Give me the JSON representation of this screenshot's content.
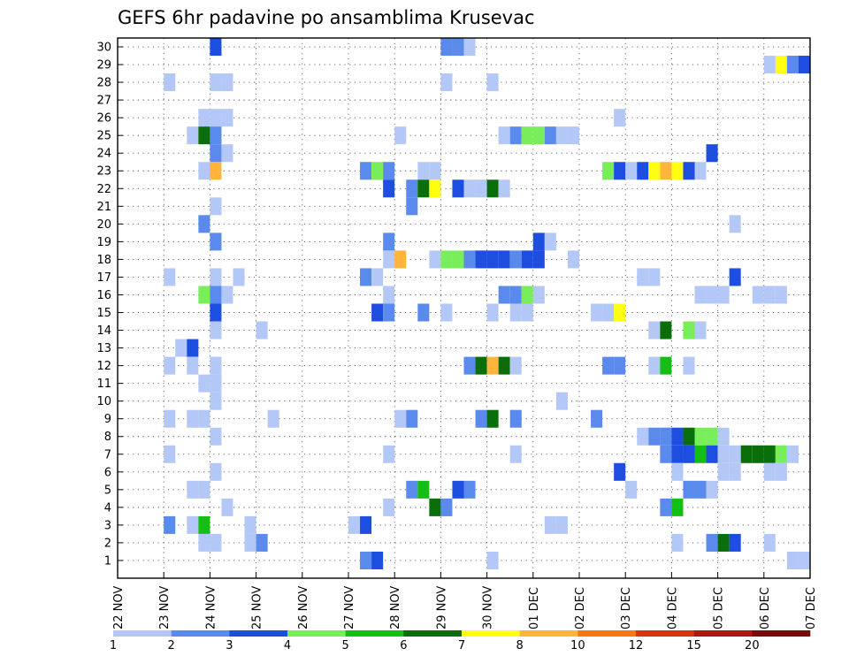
{
  "chart_data": {
    "type": "heatmap",
    "title": "GEFS 6hr padavine po ansamblima Krusevac",
    "y_members": [
      1,
      2,
      3,
      4,
      5,
      6,
      7,
      8,
      9,
      10,
      11,
      12,
      13,
      14,
      15,
      16,
      17,
      18,
      19,
      20,
      21,
      22,
      23,
      24,
      25,
      26,
      27,
      28,
      29,
      30
    ],
    "x_tick_labels": [
      "22 NOV",
      "23 NOV",
      "24 NOV",
      "25 NOV",
      "26 NOV",
      "27 NOV",
      "28 NOV",
      "29 NOV",
      "30 NOV",
      "01 DEC",
      "02 DEC",
      "03 DEC",
      "04 DEC",
      "05 DEC",
      "06 DEC",
      "07 DEC"
    ],
    "x_step_hours": 6,
    "color_thresholds": [
      1,
      2,
      3,
      4,
      5,
      6,
      7,
      8,
      10,
      12,
      15,
      20
    ],
    "colorbar_labels": [
      "1",
      "2",
      "3",
      "4",
      "5",
      "6",
      "7",
      "8",
      "10",
      "12",
      "15",
      "20"
    ],
    "colors": [
      "#b4c8f8",
      "#5a8aec",
      "#1e4ee0",
      "#78ee5a",
      "#14be14",
      "#0a6e0a",
      "#ffff14",
      "#ffb43c",
      "#f57814",
      "#dc3214",
      "#b41414",
      "#780a0a"
    ],
    "grid": true,
    "cells_note": "each cell: [member, step index from 22 NOV 00z, color class 1-12]",
    "cells": [
      [
        30,
        8,
        3
      ],
      [
        30,
        28,
        2
      ],
      [
        30,
        29,
        2
      ],
      [
        30,
        30,
        1
      ],
      [
        29,
        56,
        1
      ],
      [
        29,
        57,
        7
      ],
      [
        29,
        58,
        2
      ],
      [
        29,
        59,
        3
      ],
      [
        29,
        60,
        3
      ],
      [
        28,
        4,
        1
      ],
      [
        28,
        8,
        1
      ],
      [
        28,
        9,
        1
      ],
      [
        28,
        28,
        1
      ],
      [
        28,
        32,
        1
      ],
      [
        28,
        60,
        1
      ],
      [
        26,
        7,
        1
      ],
      [
        26,
        8,
        1
      ],
      [
        26,
        9,
        1
      ],
      [
        26,
        43,
        1
      ],
      [
        25,
        6,
        1
      ],
      [
        25,
        7,
        6
      ],
      [
        25,
        8,
        2
      ],
      [
        25,
        24,
        1
      ],
      [
        25,
        33,
        1
      ],
      [
        25,
        34,
        2
      ],
      [
        25,
        35,
        4
      ],
      [
        25,
        36,
        4
      ],
      [
        25,
        37,
        2
      ],
      [
        25,
        38,
        1
      ],
      [
        25,
        39,
        1
      ],
      [
        24,
        8,
        2
      ],
      [
        24,
        9,
        1
      ],
      [
        24,
        51,
        3
      ],
      [
        23,
        7,
        1
      ],
      [
        23,
        8,
        8
      ],
      [
        23,
        21,
        2
      ],
      [
        23,
        22,
        4
      ],
      [
        23,
        23,
        2
      ],
      [
        23,
        26,
        1
      ],
      [
        23,
        27,
        1
      ],
      [
        23,
        42,
        4
      ],
      [
        23,
        43,
        3
      ],
      [
        23,
        44,
        1
      ],
      [
        23,
        45,
        3
      ],
      [
        23,
        46,
        7
      ],
      [
        23,
        47,
        8
      ],
      [
        23,
        48,
        7
      ],
      [
        23,
        49,
        3
      ],
      [
        23,
        50,
        1
      ],
      [
        22,
        23,
        3
      ],
      [
        22,
        25,
        2
      ],
      [
        22,
        26,
        6
      ],
      [
        22,
        27,
        7
      ],
      [
        22,
        29,
        3
      ],
      [
        22,
        30,
        1
      ],
      [
        22,
        31,
        1
      ],
      [
        22,
        32,
        6
      ],
      [
        22,
        33,
        1
      ],
      [
        21,
        8,
        1
      ],
      [
        21,
        25,
        2
      ],
      [
        20,
        7,
        2
      ],
      [
        20,
        53,
        1
      ],
      [
        19,
        8,
        2
      ],
      [
        19,
        23,
        2
      ],
      [
        19,
        36,
        3
      ],
      [
        19,
        37,
        1
      ],
      [
        18,
        23,
        1
      ],
      [
        18,
        24,
        8
      ],
      [
        18,
        27,
        1
      ],
      [
        18,
        28,
        4
      ],
      [
        18,
        29,
        4
      ],
      [
        18,
        30,
        2
      ],
      [
        18,
        31,
        3
      ],
      [
        18,
        32,
        3
      ],
      [
        18,
        33,
        3
      ],
      [
        18,
        34,
        2
      ],
      [
        18,
        35,
        3
      ],
      [
        18,
        36,
        3
      ],
      [
        18,
        39,
        1
      ],
      [
        17,
        4,
        1
      ],
      [
        17,
        8,
        1
      ],
      [
        17,
        10,
        1
      ],
      [
        17,
        21,
        2
      ],
      [
        17,
        22,
        1
      ],
      [
        17,
        45,
        1
      ],
      [
        17,
        46,
        1
      ],
      [
        17,
        53,
        3
      ],
      [
        16,
        7,
        4
      ],
      [
        16,
        8,
        2
      ],
      [
        16,
        9,
        1
      ],
      [
        16,
        23,
        1
      ],
      [
        16,
        33,
        2
      ],
      [
        16,
        34,
        2
      ],
      [
        16,
        35,
        4
      ],
      [
        16,
        36,
        1
      ],
      [
        16,
        50,
        1
      ],
      [
        16,
        51,
        1
      ],
      [
        16,
        52,
        1
      ],
      [
        16,
        55,
        1
      ],
      [
        16,
        56,
        1
      ],
      [
        16,
        57,
        1
      ],
      [
        15,
        8,
        3
      ],
      [
        15,
        22,
        3
      ],
      [
        15,
        23,
        2
      ],
      [
        15,
        26,
        2
      ],
      [
        15,
        28,
        1
      ],
      [
        15,
        32,
        1
      ],
      [
        15,
        34,
        1
      ],
      [
        15,
        35,
        1
      ],
      [
        15,
        41,
        1
      ],
      [
        15,
        42,
        1
      ],
      [
        15,
        43,
        7
      ],
      [
        14,
        8,
        1
      ],
      [
        14,
        12,
        1
      ],
      [
        14,
        46,
        1
      ],
      [
        14,
        47,
        6
      ],
      [
        14,
        49,
        4
      ],
      [
        14,
        50,
        1
      ],
      [
        13,
        5,
        1
      ],
      [
        13,
        6,
        3
      ],
      [
        12,
        4,
        1
      ],
      [
        12,
        6,
        1
      ],
      [
        12,
        8,
        1
      ],
      [
        12,
        30,
        2
      ],
      [
        12,
        31,
        6
      ],
      [
        12,
        32,
        8
      ],
      [
        12,
        33,
        6
      ],
      [
        12,
        34,
        1
      ],
      [
        12,
        42,
        2
      ],
      [
        12,
        43,
        2
      ],
      [
        12,
        46,
        1
      ],
      [
        12,
        47,
        5
      ],
      [
        12,
        49,
        1
      ],
      [
        11,
        7,
        1
      ],
      [
        11,
        8,
        1
      ],
      [
        10,
        8,
        1
      ],
      [
        10,
        38,
        1
      ],
      [
        9,
        4,
        1
      ],
      [
        9,
        6,
        1
      ],
      [
        9,
        7,
        1
      ],
      [
        9,
        13,
        1
      ],
      [
        9,
        24,
        1
      ],
      [
        9,
        25,
        2
      ],
      [
        9,
        31,
        2
      ],
      [
        9,
        32,
        6
      ],
      [
        9,
        34,
        2
      ],
      [
        9,
        41,
        2
      ],
      [
        8,
        8,
        1
      ],
      [
        8,
        45,
        1
      ],
      [
        8,
        46,
        2
      ],
      [
        8,
        47,
        2
      ],
      [
        8,
        48,
        3
      ],
      [
        8,
        49,
        6
      ],
      [
        8,
        50,
        4
      ],
      [
        8,
        51,
        4
      ],
      [
        8,
        52,
        1
      ],
      [
        7,
        4,
        1
      ],
      [
        7,
        23,
        1
      ],
      [
        7,
        34,
        1
      ],
      [
        7,
        47,
        2
      ],
      [
        7,
        48,
        3
      ],
      [
        7,
        49,
        3
      ],
      [
        7,
        50,
        5
      ],
      [
        7,
        51,
        3
      ],
      [
        7,
        52,
        1
      ],
      [
        7,
        53,
        1
      ],
      [
        7,
        54,
        6
      ],
      [
        7,
        55,
        6
      ],
      [
        7,
        56,
        6
      ],
      [
        7,
        57,
        4
      ],
      [
        7,
        58,
        1
      ],
      [
        6,
        8,
        1
      ],
      [
        6,
        43,
        3
      ],
      [
        6,
        48,
        1
      ],
      [
        6,
        52,
        1
      ],
      [
        6,
        53,
        1
      ],
      [
        6,
        56,
        1
      ],
      [
        6,
        57,
        1
      ],
      [
        5,
        6,
        1
      ],
      [
        5,
        7,
        1
      ],
      [
        5,
        25,
        2
      ],
      [
        5,
        26,
        5
      ],
      [
        5,
        29,
        3
      ],
      [
        5,
        30,
        2
      ],
      [
        5,
        44,
        1
      ],
      [
        5,
        49,
        2
      ],
      [
        5,
        50,
        2
      ],
      [
        5,
        51,
        1
      ],
      [
        4,
        9,
        1
      ],
      [
        4,
        23,
        1
      ],
      [
        4,
        27,
        6
      ],
      [
        4,
        28,
        2
      ],
      [
        4,
        47,
        2
      ],
      [
        4,
        48,
        5
      ],
      [
        3,
        4,
        2
      ],
      [
        3,
        6,
        1
      ],
      [
        3,
        7,
        5
      ],
      [
        3,
        11,
        1
      ],
      [
        3,
        20,
        1
      ],
      [
        3,
        21,
        3
      ],
      [
        3,
        37,
        1
      ],
      [
        3,
        38,
        1
      ],
      [
        2,
        7,
        1
      ],
      [
        2,
        8,
        1
      ],
      [
        2,
        11,
        1
      ],
      [
        2,
        12,
        2
      ],
      [
        2,
        48,
        1
      ],
      [
        2,
        51,
        2
      ],
      [
        2,
        52,
        6
      ],
      [
        2,
        53,
        3
      ],
      [
        2,
        56,
        1
      ],
      [
        1,
        21,
        2
      ],
      [
        1,
        22,
        3
      ],
      [
        1,
        32,
        1
      ],
      [
        1,
        58,
        1
      ],
      [
        1,
        59,
        1
      ],
      [
        1,
        60,
        3
      ]
    ]
  }
}
